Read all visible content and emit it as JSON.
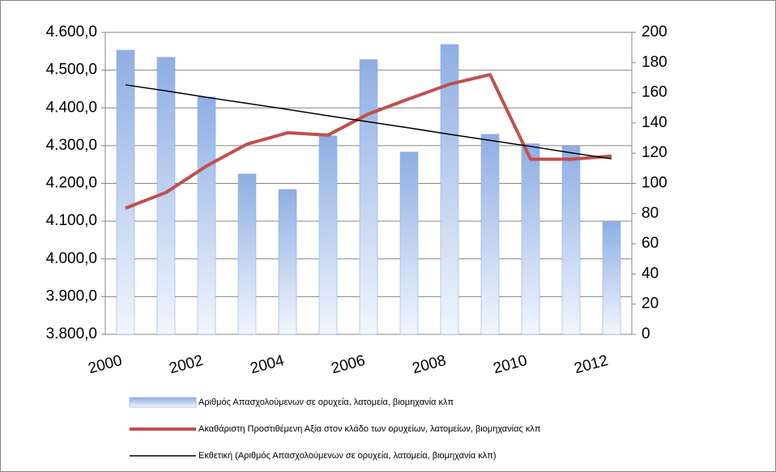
{
  "chart_data": {
    "type": "bar",
    "categories": [
      "2000",
      null,
      "2002",
      null,
      "2004",
      null,
      "2006",
      null,
      "2008",
      null,
      "2010",
      null,
      "2012"
    ],
    "series": [
      {
        "name": "Αριθμός Απασχολούμενων σε ορυχεία, λατομεία, βιομηχανία κλπ",
        "type": "bar",
        "axis": "y",
        "color": "#8eaee4",
        "values": [
          4553,
          4534,
          4429,
          4225,
          4184,
          4326,
          4528,
          4283,
          4568,
          4330,
          4305,
          4298,
          4098
        ]
      },
      {
        "name": "Ακαθάριστη Προστιθέμενη Αξία στον κλάδο των ορυχείων, λατομείων, βιομηχανίας κλπ",
        "type": "line",
        "axis": "y2",
        "color": "#c0504d",
        "values": [
          83.6,
          94,
          111.5,
          126,
          133.5,
          132,
          146,
          156,
          165.7,
          172,
          116,
          116,
          118
        ]
      },
      {
        "name": "Εκθετική (Αριθμός Απασχολούμενων σε ορυχεία, λατομεία, βιομηχανία κλπ)",
        "type": "trend",
        "axis": "y",
        "color": "#000000",
        "values": [
          4461,
          4445,
          4428,
          4412,
          4396,
          4379,
          4363,
          4347,
          4330,
          4314,
          4298,
          4281,
          4265
        ]
      }
    ],
    "ylim": [
      3800,
      4600
    ],
    "yticks": [
      {
        "value": 3800,
        "label": "3.800,0"
      },
      {
        "value": 3900,
        "label": "3.900,0"
      },
      {
        "value": 4000,
        "label": "4.000,0"
      },
      {
        "value": 4100,
        "label": "4.100,0"
      },
      {
        "value": 4200,
        "label": "4.200,0"
      },
      {
        "value": 4300,
        "label": "4.300,0"
      },
      {
        "value": 4400,
        "label": "4.400,0"
      },
      {
        "value": 4500,
        "label": "4.500,0"
      },
      {
        "value": 4600,
        "label": "4.600,0"
      }
    ],
    "y2lim": [
      0,
      200
    ],
    "y2ticks": [
      0,
      20,
      40,
      60,
      80,
      100,
      120,
      140,
      160,
      180,
      200
    ],
    "grid": true,
    "legend": "bottom"
  }
}
